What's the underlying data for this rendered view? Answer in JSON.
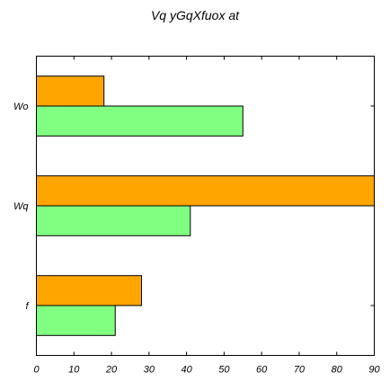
{
  "chart_data": {
    "type": "bar",
    "orientation": "horizontal",
    "title": "Vq yGqXfuox at",
    "xlabel": "",
    "ylabel": "",
    "categories": [
      "Wo",
      "Wq",
      "f"
    ],
    "series": [
      {
        "values": [
          18,
          90,
          28
        ],
        "color": "#ffa500"
      },
      {
        "values": [
          55,
          41,
          21
        ],
        "color": "#80ff80"
      }
    ],
    "xlim": [
      0,
      90
    ],
    "xticks": [
      0,
      10,
      20,
      30,
      40,
      50,
      60,
      70,
      80,
      90
    ],
    "grid": false,
    "legend": "none"
  }
}
